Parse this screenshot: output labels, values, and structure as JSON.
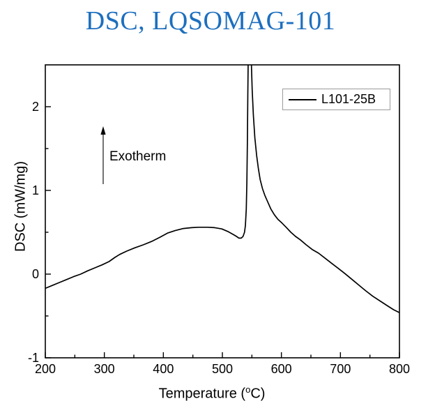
{
  "colors": {
    "title": "#1d6fbf",
    "curve": "#000000",
    "axis": "#000000",
    "legend_border": "#9a9a9a",
    "background": "#ffffff"
  },
  "chart_data": {
    "type": "line",
    "title": "DSC, LQSOMAG-101",
    "xlabel_pre": "Temperature (",
    "xlabel_sup": "o",
    "xlabel_post": "C)",
    "ylabel": "DSC (mW/mg)",
    "xlim": [
      200,
      800
    ],
    "ylim": [
      -1,
      2.5
    ],
    "x_major_ticks": [
      200,
      300,
      400,
      500,
      600,
      700,
      800
    ],
    "x_minor_ticks": [
      250,
      350,
      450,
      550,
      650,
      750
    ],
    "y_major_ticks": [
      -1,
      0,
      1,
      2
    ],
    "y_minor_ticks": [
      -0.5,
      0.5,
      1.5
    ],
    "grid": false,
    "legend": {
      "position": "top-right",
      "entries": [
        {
          "label": "L101-25B",
          "color": "#000000"
        }
      ]
    },
    "annotation": {
      "text": "Exotherm",
      "arrow": "up"
    },
    "series": [
      {
        "name": "L101-25B",
        "color": "#000000",
        "points": [
          [
            200,
            -0.17
          ],
          [
            212,
            -0.135
          ],
          [
            224,
            -0.1
          ],
          [
            236,
            -0.065
          ],
          [
            248,
            -0.03
          ],
          [
            260,
            0.0
          ],
          [
            272,
            0.04
          ],
          [
            284,
            0.075
          ],
          [
            296,
            0.11
          ],
          [
            308,
            0.15
          ],
          [
            318,
            0.2
          ],
          [
            326,
            0.235
          ],
          [
            338,
            0.275
          ],
          [
            352,
            0.315
          ],
          [
            366,
            0.35
          ],
          [
            380,
            0.39
          ],
          [
            394,
            0.44
          ],
          [
            407,
            0.49
          ],
          [
            420,
            0.52
          ],
          [
            434,
            0.545
          ],
          [
            448,
            0.555
          ],
          [
            460,
            0.56
          ],
          [
            475,
            0.56
          ],
          [
            487,
            0.555
          ],
          [
            499,
            0.54
          ],
          [
            509,
            0.51
          ],
          [
            518,
            0.475
          ],
          [
            524,
            0.45
          ],
          [
            528,
            0.43
          ],
          [
            532,
            0.43
          ],
          [
            535,
            0.45
          ],
          [
            537.5,
            0.5
          ],
          [
            539,
            0.58
          ],
          [
            540.5,
            0.78
          ],
          [
            541.5,
            1.1
          ],
          [
            542.4,
            1.6
          ],
          [
            543.1,
            2.15
          ],
          [
            543.8,
            2.6
          ],
          [
            544.6,
            2.95
          ],
          [
            546,
            3.1
          ],
          [
            547.8,
            2.95
          ],
          [
            549.2,
            2.5
          ],
          [
            550.5,
            2.2
          ],
          [
            552.5,
            1.9
          ],
          [
            555,
            1.63
          ],
          [
            558,
            1.42
          ],
          [
            561,
            1.26
          ],
          [
            564,
            1.13
          ],
          [
            568,
            1.02
          ],
          [
            572,
            0.94
          ],
          [
            577,
            0.86
          ],
          [
            582,
            0.78
          ],
          [
            588,
            0.71
          ],
          [
            594,
            0.655
          ],
          [
            601,
            0.61
          ],
          [
            608,
            0.56
          ],
          [
            616,
            0.5
          ],
          [
            624,
            0.45
          ],
          [
            632,
            0.41
          ],
          [
            642,
            0.35
          ],
          [
            652,
            0.295
          ],
          [
            663,
            0.25
          ],
          [
            674,
            0.19
          ],
          [
            685,
            0.13
          ],
          [
            696,
            0.07
          ],
          [
            707,
            0.01
          ],
          [
            719,
            -0.06
          ],
          [
            731,
            -0.13
          ],
          [
            743,
            -0.2
          ],
          [
            755,
            -0.265
          ],
          [
            768,
            -0.325
          ],
          [
            780,
            -0.38
          ],
          [
            790,
            -0.425
          ],
          [
            800,
            -0.46
          ]
        ]
      }
    ]
  }
}
